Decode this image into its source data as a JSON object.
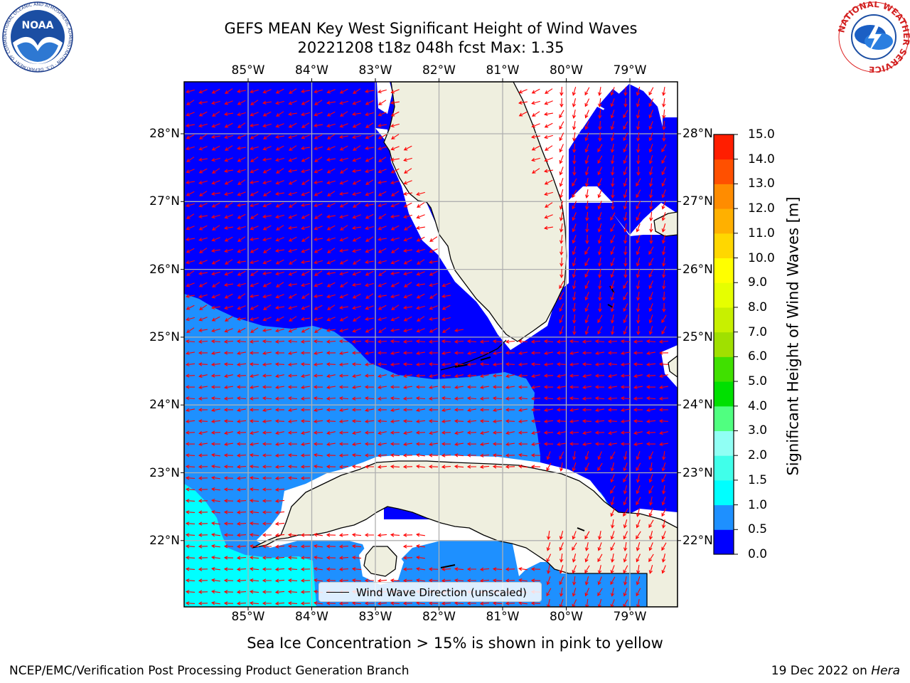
{
  "title_line1": "GEFS MEAN Key West Significant Height of Wind Waves",
  "title_line2": "20221208 t18z 048h fcst   Max: 1.35",
  "noaa_logo_text": "NOAA",
  "noaa_ring_text": "NATIONAL OCEANIC AND ATMOSPHERIC ADMINISTRATION · U.S. DEPARTMENT OF COMMERCE",
  "nws_ring_text": "NATIONAL WEATHER SERVICE",
  "lon_labels": [
    "85°W",
    "84°W",
    "83°W",
    "82°W",
    "81°W",
    "80°W",
    "79°W"
  ],
  "lat_labels": [
    "28°N",
    "27°N",
    "26°N",
    "25°N",
    "24°N",
    "23°N",
    "22°N"
  ],
  "colorbar": {
    "levels": [
      "0.0",
      "0.5",
      "1.0",
      "1.5",
      "2.0",
      "3.0",
      "4.0",
      "5.0",
      "6.0",
      "7.0",
      "8.0",
      "9.0",
      "10.0",
      "11.0",
      "12.0",
      "13.0",
      "14.0",
      "15.0"
    ],
    "colors": [
      "#0000ff",
      "#1e90ff",
      "#00ffff",
      "#40ffea",
      "#90fff4",
      "#50ff80",
      "#00e000",
      "#40e000",
      "#a0e000",
      "#c8f000",
      "#e6ff00",
      "#ffff00",
      "#ffd700",
      "#ffb000",
      "#ff8c00",
      "#ff5000",
      "#ff1e00"
    ],
    "label": "Significant Height of Wind Waves [m]"
  },
  "legend_label": "Wind Wave Direction (unscaled)",
  "sea_ice_note": "Sea Ice Concentration > 15% is shown in pink to yellow",
  "footer_left": "NCEP/EMC/Verification Post Processing Product Generation Branch",
  "footer_right": "19 Dec 2022 on Hera",
  "colors": {
    "land": "#efefdf",
    "sea_low": "#0000ff",
    "sea_mid": "#1e90ff",
    "sea_high": "#00ffff",
    "arrow": "#ff0000",
    "grid": "#b0b0b0"
  }
}
